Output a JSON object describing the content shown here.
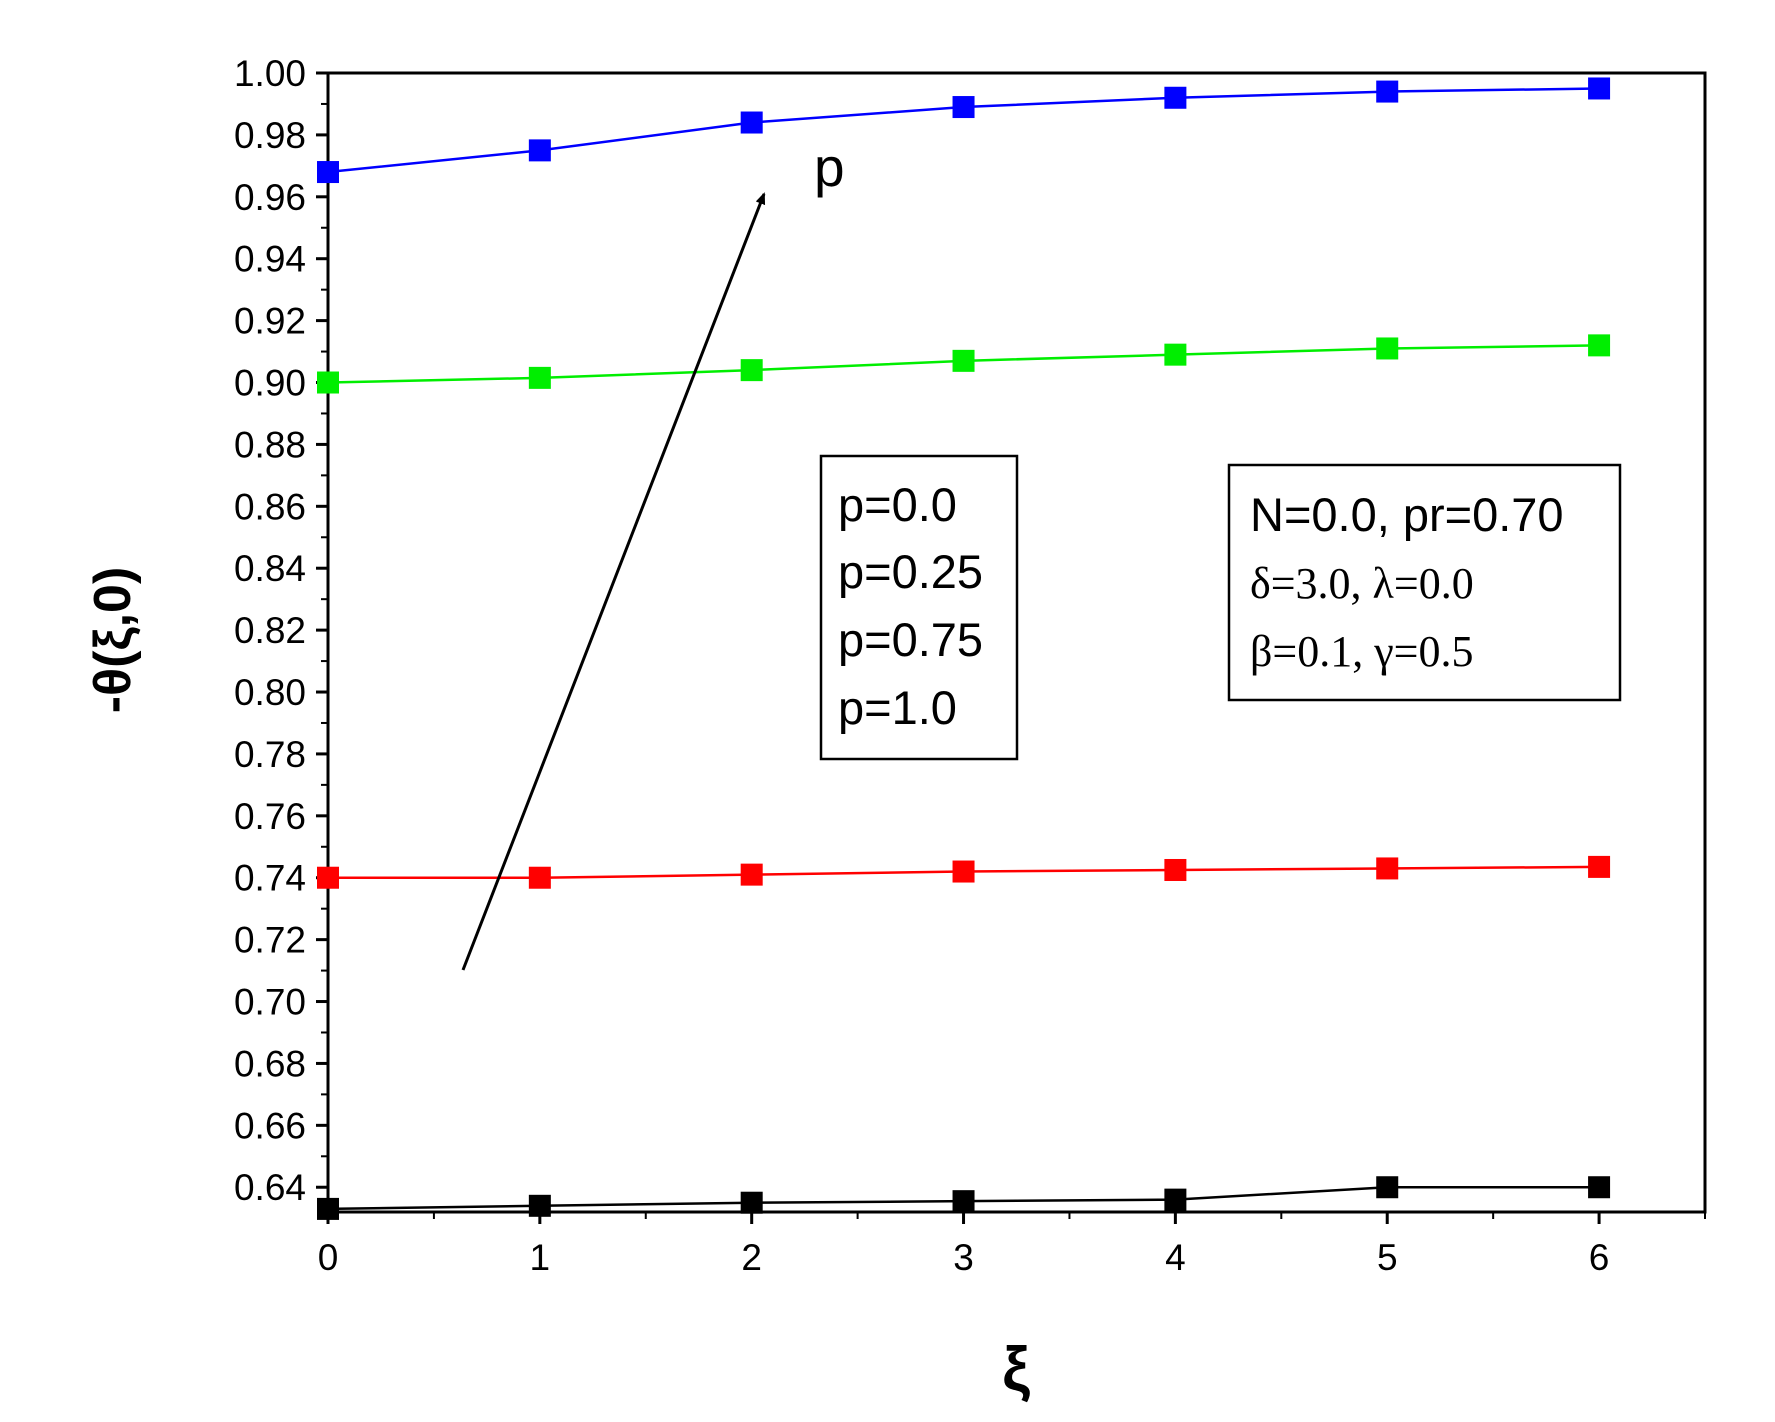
{
  "chart_data": {
    "type": "line",
    "title": "",
    "xlabel": "ξ",
    "ylabel": "-θ(ξ,0)",
    "x": [
      0,
      1,
      2,
      3,
      4,
      5,
      6
    ],
    "xlim": [
      0,
      6.5
    ],
    "ylim": [
      0.632,
      1.0
    ],
    "xticks": [
      "0",
      "1",
      "2",
      "3",
      "4",
      "5",
      "6"
    ],
    "yticks": [
      "0.64",
      "0.66",
      "0.68",
      "0.70",
      "0.72",
      "0.74",
      "0.76",
      "0.78",
      "0.80",
      "0.82",
      "0.84",
      "0.86",
      "0.88",
      "0.90",
      "0.92",
      "0.94",
      "0.96",
      "0.98",
      "1.00"
    ],
    "series": [
      {
        "name": "p=0.0",
        "color": "#000000",
        "values": [
          0.633,
          0.634,
          0.635,
          0.6355,
          0.636,
          0.64,
          0.64
        ]
      },
      {
        "name": "p=0.25",
        "color": "#ff0000",
        "values": [
          0.74,
          0.74,
          0.741,
          0.742,
          0.7425,
          0.743,
          0.7435
        ]
      },
      {
        "name": "p=0.75",
        "color": "#00ee00",
        "values": [
          0.9,
          0.9015,
          0.904,
          0.907,
          0.909,
          0.911,
          0.912
        ]
      },
      {
        "name": "p=1.0",
        "color": "#0000ff",
        "values": [
          0.968,
          0.975,
          0.984,
          0.989,
          0.992,
          0.994,
          0.995
        ]
      }
    ],
    "legend": {
      "entries": [
        "p=0.0",
        "p=0.25",
        "p=0.75",
        "p=1.0"
      ],
      "placement": "center"
    },
    "params": {
      "line1": "N=0.0, pr=0.70",
      "line2": "δ=3.0, λ=0.0",
      "line3": "β=0.1, γ=0.5"
    },
    "annotation": {
      "text": "p",
      "arrow": "points toward increasing p"
    }
  }
}
